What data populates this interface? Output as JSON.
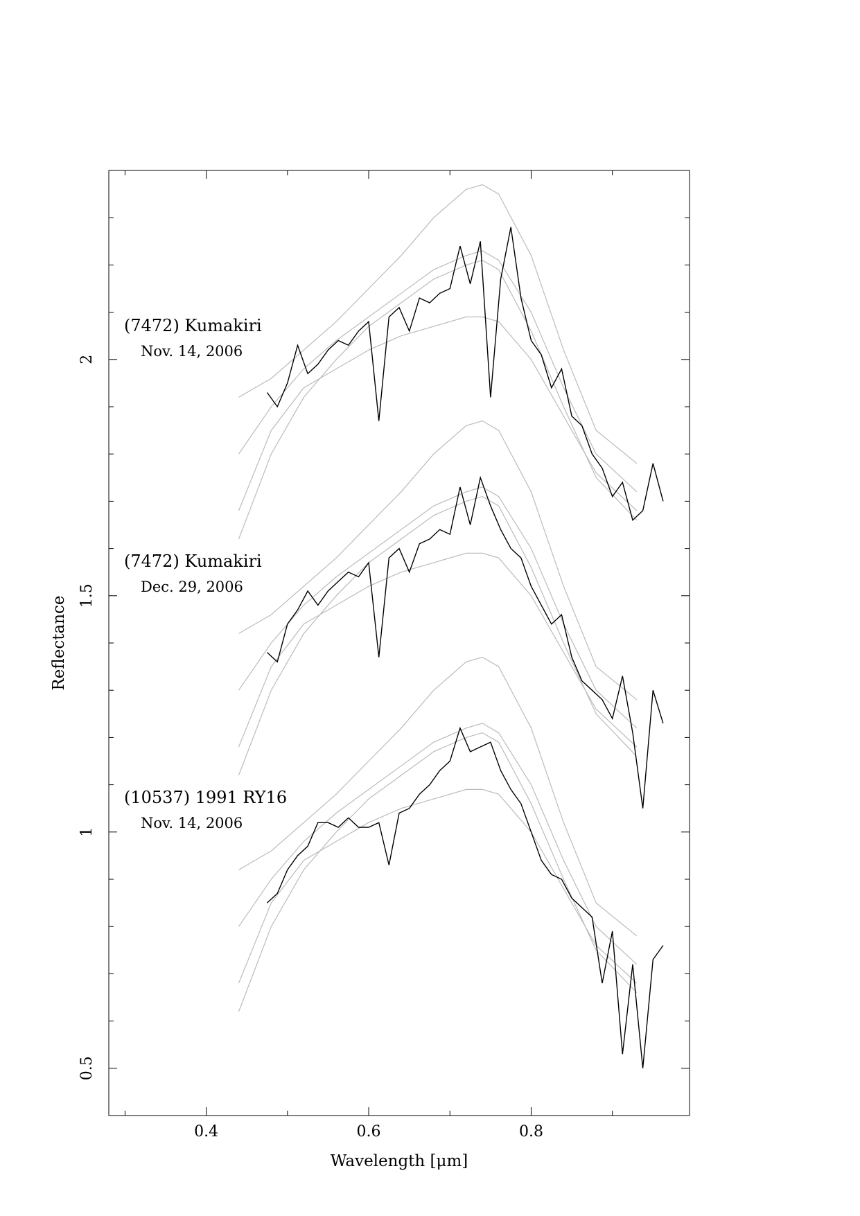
{
  "chart_data": {
    "type": "line",
    "xlabel": "Wavelength [μm]",
    "ylabel": "Reflectance",
    "xlim": [
      0.28,
      0.995
    ],
    "ylim": [
      0.4,
      2.4
    ],
    "xticks": [
      0.4,
      0.6,
      0.8
    ],
    "xminor": [
      0.3,
      0.5,
      0.7,
      0.9
    ],
    "yticks": [
      0.5,
      1,
      1.5,
      2
    ],
    "yminor": [
      0.4,
      0.6,
      0.7,
      0.8,
      0.9,
      1.1,
      1.2,
      1.3,
      1.4,
      1.6,
      1.7,
      1.8,
      1.9,
      2.1,
      2.2,
      2.3,
      2.4
    ],
    "annotations": [
      {
        "name": "(7472) Kumakiri",
        "date": "Nov. 14, 2006"
      },
      {
        "name": "(7472) Kumakiri",
        "date": "Dec. 29, 2006"
      },
      {
        "name": "(10537) 1991 RY16",
        "date": "Nov. 14, 2006"
      }
    ],
    "series": [
      {
        "color": "#bbbbbb",
        "x": [
          0.44,
          0.48,
          0.52,
          0.56,
          0.6,
          0.64,
          0.68,
          0.72,
          0.74,
          0.76,
          0.8,
          0.84,
          0.88,
          0.93
        ],
        "values": [
          1.92,
          1.96,
          2.02,
          2.08,
          2.15,
          2.22,
          2.3,
          2.36,
          2.37,
          2.35,
          2.22,
          2.02,
          1.85,
          1.78
        ]
      },
      {
        "color": "#bbbbbb",
        "x": [
          0.44,
          0.48,
          0.52,
          0.56,
          0.6,
          0.64,
          0.68,
          0.72,
          0.74,
          0.76,
          0.8,
          0.84,
          0.88,
          0.93
        ],
        "values": [
          1.8,
          1.9,
          1.98,
          2.04,
          2.09,
          2.14,
          2.19,
          2.22,
          2.23,
          2.21,
          2.1,
          1.94,
          1.8,
          1.72
        ]
      },
      {
        "color": "#bbbbbb",
        "x": [
          0.44,
          0.48,
          0.52,
          0.56,
          0.6,
          0.64,
          0.68,
          0.72,
          0.74,
          0.76,
          0.8,
          0.84,
          0.88,
          0.93
        ],
        "values": [
          1.62,
          1.8,
          1.92,
          2.0,
          2.07,
          2.12,
          2.17,
          2.2,
          2.21,
          2.19,
          2.06,
          1.9,
          1.75,
          1.66
        ]
      },
      {
        "color": "#bbbbbb",
        "x": [
          0.44,
          0.48,
          0.52,
          0.56,
          0.6,
          0.64,
          0.68,
          0.72,
          0.74,
          0.76,
          0.8,
          0.84,
          0.88,
          0.93
        ],
        "values": [
          1.68,
          1.85,
          1.94,
          1.98,
          2.02,
          2.05,
          2.07,
          2.09,
          2.09,
          2.08,
          2.0,
          1.88,
          1.76,
          1.68
        ]
      },
      {
        "color": "#bbbbbb",
        "x": [
          0.44,
          0.48,
          0.52,
          0.56,
          0.6,
          0.64,
          0.68,
          0.72,
          0.74,
          0.76,
          0.8,
          0.84,
          0.88,
          0.93
        ],
        "values": [
          1.42,
          1.46,
          1.52,
          1.58,
          1.65,
          1.72,
          1.8,
          1.86,
          1.87,
          1.85,
          1.72,
          1.52,
          1.35,
          1.28
        ]
      },
      {
        "color": "#bbbbbb",
        "x": [
          0.44,
          0.48,
          0.52,
          0.56,
          0.6,
          0.64,
          0.68,
          0.72,
          0.74,
          0.76,
          0.8,
          0.84,
          0.88,
          0.93
        ],
        "values": [
          1.3,
          1.4,
          1.48,
          1.54,
          1.59,
          1.64,
          1.69,
          1.72,
          1.73,
          1.71,
          1.6,
          1.44,
          1.3,
          1.22
        ]
      },
      {
        "color": "#bbbbbb",
        "x": [
          0.44,
          0.48,
          0.52,
          0.56,
          0.6,
          0.64,
          0.68,
          0.72,
          0.74,
          0.76,
          0.8,
          0.84,
          0.88,
          0.93
        ],
        "values": [
          1.12,
          1.3,
          1.42,
          1.5,
          1.57,
          1.62,
          1.67,
          1.7,
          1.71,
          1.69,
          1.56,
          1.4,
          1.25,
          1.16
        ]
      },
      {
        "color": "#bbbbbb",
        "x": [
          0.44,
          0.48,
          0.52,
          0.56,
          0.6,
          0.64,
          0.68,
          0.72,
          0.74,
          0.76,
          0.8,
          0.84,
          0.88,
          0.93
        ],
        "values": [
          1.18,
          1.35,
          1.44,
          1.48,
          1.52,
          1.55,
          1.57,
          1.59,
          1.59,
          1.58,
          1.5,
          1.38,
          1.26,
          1.18
        ]
      },
      {
        "color": "#bbbbbb",
        "x": [
          0.44,
          0.48,
          0.52,
          0.56,
          0.6,
          0.64,
          0.68,
          0.72,
          0.74,
          0.76,
          0.8,
          0.84,
          0.88,
          0.93
        ],
        "values": [
          0.92,
          0.96,
          1.02,
          1.08,
          1.15,
          1.22,
          1.3,
          1.36,
          1.37,
          1.35,
          1.22,
          1.02,
          0.85,
          0.78
        ]
      },
      {
        "color": "#bbbbbb",
        "x": [
          0.44,
          0.48,
          0.52,
          0.56,
          0.6,
          0.64,
          0.68,
          0.72,
          0.74,
          0.76,
          0.8,
          0.84,
          0.88,
          0.93
        ],
        "values": [
          0.8,
          0.9,
          0.98,
          1.04,
          1.09,
          1.14,
          1.19,
          1.22,
          1.23,
          1.21,
          1.1,
          0.94,
          0.8,
          0.72
        ]
      },
      {
        "color": "#bbbbbb",
        "x": [
          0.44,
          0.48,
          0.52,
          0.56,
          0.6,
          0.64,
          0.68,
          0.72,
          0.74,
          0.76,
          0.8,
          0.84,
          0.88,
          0.93
        ],
        "values": [
          0.62,
          0.8,
          0.92,
          1.0,
          1.07,
          1.12,
          1.17,
          1.2,
          1.21,
          1.19,
          1.06,
          0.9,
          0.75,
          0.66
        ]
      },
      {
        "color": "#bbbbbb",
        "x": [
          0.44,
          0.48,
          0.52,
          0.56,
          0.6,
          0.64,
          0.68,
          0.72,
          0.74,
          0.76,
          0.8,
          0.84,
          0.88,
          0.93
        ],
        "values": [
          0.68,
          0.85,
          0.94,
          0.98,
          1.02,
          1.05,
          1.07,
          1.09,
          1.09,
          1.08,
          1.0,
          0.88,
          0.76,
          0.68
        ]
      },
      {
        "color": "#000000",
        "x": [
          0.475,
          0.4875,
          0.5,
          0.5125,
          0.525,
          0.5375,
          0.55,
          0.5625,
          0.575,
          0.5875,
          0.6,
          0.6125,
          0.625,
          0.6375,
          0.65,
          0.6625,
          0.675,
          0.6875,
          0.7,
          0.7125,
          0.725,
          0.7375,
          0.75,
          0.7625,
          0.775,
          0.7875,
          0.8,
          0.8125,
          0.825,
          0.8375,
          0.85,
          0.8625,
          0.875,
          0.8875,
          0.9,
          0.9125,
          0.925,
          0.9375,
          0.95,
          0.9625
        ],
        "values": [
          1.93,
          1.9,
          1.95,
          2.03,
          1.97,
          1.99,
          2.02,
          2.04,
          2.03,
          2.06,
          2.08,
          1.87,
          2.09,
          2.11,
          2.06,
          2.13,
          2.12,
          2.14,
          2.15,
          2.24,
          2.16,
          2.25,
          1.92,
          2.17,
          2.28,
          2.13,
          2.04,
          2.01,
          1.94,
          1.98,
          1.88,
          1.86,
          1.8,
          1.77,
          1.71,
          1.74,
          1.66,
          1.68,
          1.78,
          1.7
        ]
      },
      {
        "color": "#000000",
        "x": [
          0.475,
          0.4875,
          0.5,
          0.5125,
          0.525,
          0.5375,
          0.55,
          0.5625,
          0.575,
          0.5875,
          0.6,
          0.6125,
          0.625,
          0.6375,
          0.65,
          0.6625,
          0.675,
          0.6875,
          0.7,
          0.7125,
          0.725,
          0.7375,
          0.75,
          0.7625,
          0.775,
          0.7875,
          0.8,
          0.8125,
          0.825,
          0.8375,
          0.85,
          0.8625,
          0.875,
          0.8875,
          0.9,
          0.9125,
          0.925,
          0.9375,
          0.95,
          0.9625
        ],
        "values": [
          1.38,
          1.36,
          1.44,
          1.47,
          1.51,
          1.48,
          1.51,
          1.53,
          1.55,
          1.54,
          1.57,
          1.37,
          1.58,
          1.6,
          1.55,
          1.61,
          1.62,
          1.64,
          1.63,
          1.73,
          1.65,
          1.75,
          1.69,
          1.64,
          1.6,
          1.58,
          1.52,
          1.48,
          1.44,
          1.46,
          1.37,
          1.32,
          1.3,
          1.28,
          1.24,
          1.33,
          1.21,
          1.05,
          1.3,
          1.23
        ]
      },
      {
        "color": "#000000",
        "x": [
          0.475,
          0.4875,
          0.5,
          0.5125,
          0.525,
          0.5375,
          0.55,
          0.5625,
          0.575,
          0.5875,
          0.6,
          0.6125,
          0.625,
          0.6375,
          0.65,
          0.6625,
          0.675,
          0.6875,
          0.7,
          0.7125,
          0.725,
          0.7375,
          0.75,
          0.7625,
          0.775,
          0.7875,
          0.8,
          0.8125,
          0.825,
          0.8375,
          0.85,
          0.8625,
          0.875,
          0.8875,
          0.9,
          0.9125,
          0.925,
          0.9375,
          0.95,
          0.9625
        ],
        "values": [
          0.85,
          0.87,
          0.92,
          0.95,
          0.97,
          1.02,
          1.02,
          1.01,
          1.03,
          1.01,
          1.01,
          1.02,
          0.93,
          1.04,
          1.05,
          1.08,
          1.1,
          1.13,
          1.15,
          1.22,
          1.17,
          1.18,
          1.19,
          1.13,
          1.09,
          1.06,
          1.0,
          0.94,
          0.91,
          0.9,
          0.86,
          0.84,
          0.82,
          0.68,
          0.79,
          0.53,
          0.72,
          0.5,
          0.73,
          0.76
        ]
      }
    ]
  }
}
